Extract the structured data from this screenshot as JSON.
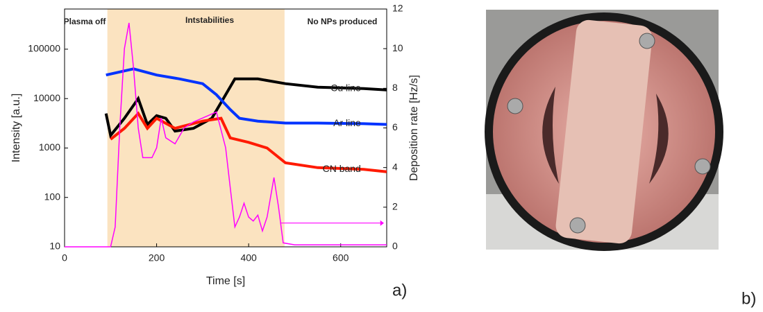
{
  "chart_data": {
    "type": "line",
    "xlabel": "Time [s]",
    "ylabel": "Intensity [a.u.]",
    "y2label": "Deposition rate [Hz/s]",
    "xlim": [
      0,
      700
    ],
    "xticks": [
      0,
      200,
      400,
      600
    ],
    "ylim": [
      10,
      650000
    ],
    "yticks": [
      10,
      100,
      1000,
      10000,
      100000
    ],
    "y_scale": "log",
    "y2lim": [
      0,
      12
    ],
    "y2ticks": [
      0,
      2,
      4,
      6,
      8,
      10,
      12
    ],
    "shaded_region": [
      93,
      478
    ],
    "shaded_color": "#fbe3c0",
    "annotations": [
      "Plasma off",
      "Intstabilities",
      "No NPs produced"
    ],
    "panel_labels": [
      "a)",
      "b)"
    ],
    "series": [
      {
        "name": "Cu line",
        "color": "#000000",
        "x": [
          90,
          100,
          130,
          160,
          180,
          200,
          220,
          240,
          280,
          320,
          350,
          370,
          420,
          480,
          550,
          650,
          700
        ],
        "values": [
          5000,
          1800,
          4000,
          10000,
          3000,
          4500,
          4000,
          2200,
          2500,
          4000,
          12000,
          25000,
          25000,
          20000,
          17000,
          16000,
          15000
        ]
      },
      {
        "name": "Ar line",
        "color": "#0033ff",
        "x": [
          90,
          150,
          200,
          250,
          300,
          330,
          360,
          380,
          420,
          480,
          550,
          650,
          700
        ],
        "values": [
          30000,
          40000,
          30000,
          25000,
          20000,
          12000,
          6000,
          4000,
          3500,
          3200,
          3200,
          3100,
          3000
        ]
      },
      {
        "name": "CN band",
        "color": "#ff1a00",
        "x": [
          100,
          130,
          160,
          180,
          200,
          240,
          300,
          340,
          360,
          400,
          440,
          480,
          550,
          650,
          700
        ],
        "values": [
          1500,
          2500,
          5000,
          2500,
          4000,
          2500,
          3500,
          4000,
          1600,
          1300,
          1000,
          500,
          400,
          370,
          330
        ]
      },
      {
        "color": "#ff00ff",
        "axis": "y2",
        "x": [
          0,
          100,
          110,
          120,
          130,
          140,
          150,
          160,
          170,
          190,
          200,
          210,
          220,
          240,
          260,
          280,
          300,
          330,
          350,
          360,
          370,
          380,
          390,
          400,
          410,
          420,
          430,
          440,
          455,
          465,
          475,
          500,
          600,
          700
        ],
        "values": [
          0,
          0,
          1,
          6,
          10,
          11.3,
          9,
          6,
          4.5,
          4.5,
          5,
          6.5,
          5.5,
          5.2,
          6,
          6.3,
          6.5,
          6.8,
          5,
          3,
          1,
          1.5,
          2.2,
          1.5,
          1.3,
          1.6,
          0.8,
          1.5,
          3.5,
          2,
          0.2,
          0.1,
          0.1,
          0.1
        ]
      }
    ]
  }
}
